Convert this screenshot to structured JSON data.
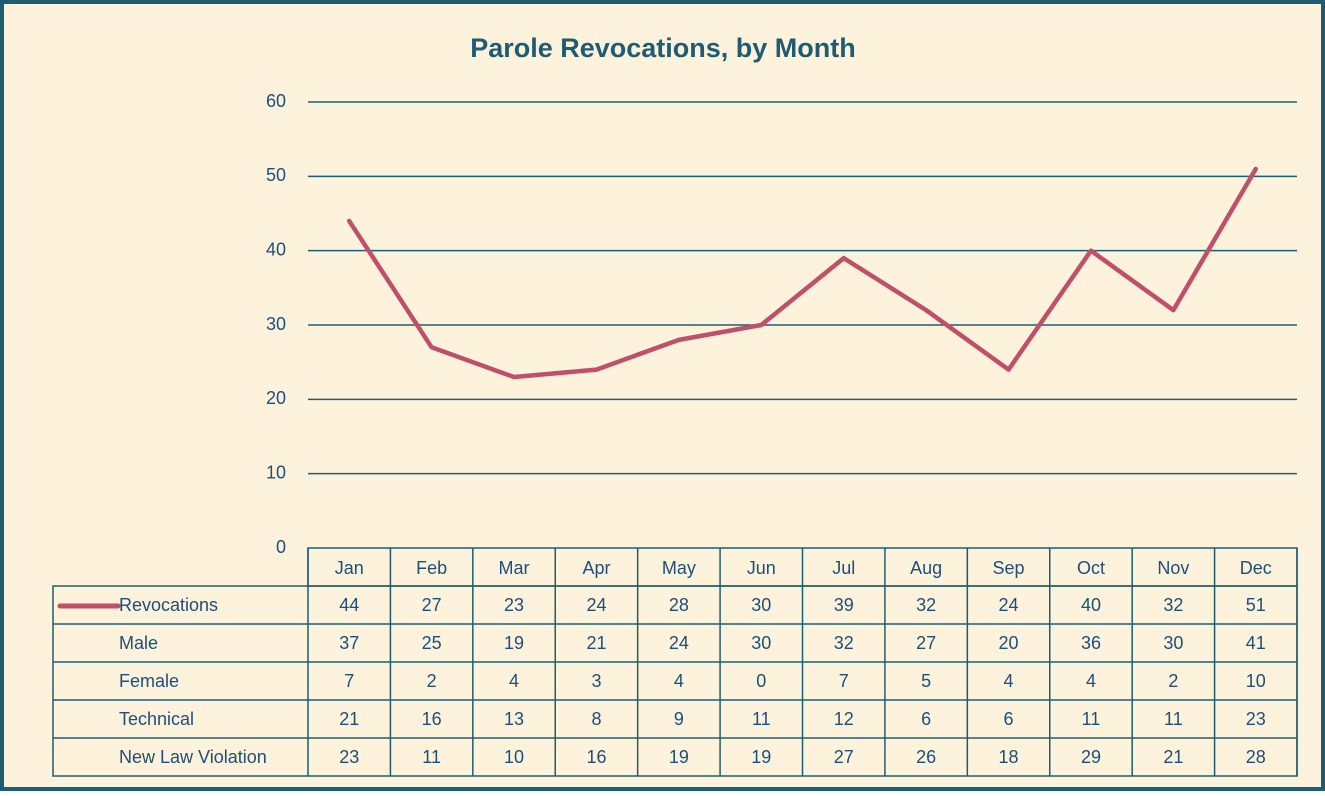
{
  "chart_data": {
    "type": "line",
    "title": "Parole Revocations, by Month",
    "categories": [
      "Jan",
      "Feb",
      "Mar",
      "Apr",
      "May",
      "Jun",
      "Jul",
      "Aug",
      "Sep",
      "Oct",
      "Nov",
      "Dec"
    ],
    "series": [
      {
        "name": "Revocations",
        "color": "#c0506a",
        "values": [
          44,
          27,
          23,
          24,
          28,
          30,
          39,
          32,
          24,
          40,
          32,
          51
        ]
      },
      {
        "name": "Male",
        "values": [
          37,
          25,
          19,
          21,
          24,
          30,
          32,
          27,
          20,
          36,
          30,
          41
        ]
      },
      {
        "name": "Female",
        "values": [
          7,
          2,
          4,
          3,
          4,
          0,
          7,
          5,
          4,
          4,
          2,
          10
        ]
      },
      {
        "name": "Technical",
        "values": [
          21,
          16,
          13,
          8,
          9,
          11,
          12,
          6,
          6,
          11,
          11,
          23
        ]
      },
      {
        "name": "New Law Violation",
        "values": [
          23,
          11,
          10,
          16,
          19,
          19,
          27,
          26,
          18,
          29,
          21,
          28
        ]
      }
    ],
    "ylim": [
      0,
      60
    ],
    "yticks": [
      0,
      10,
      20,
      30,
      40,
      50,
      60
    ],
    "grid": true
  }
}
